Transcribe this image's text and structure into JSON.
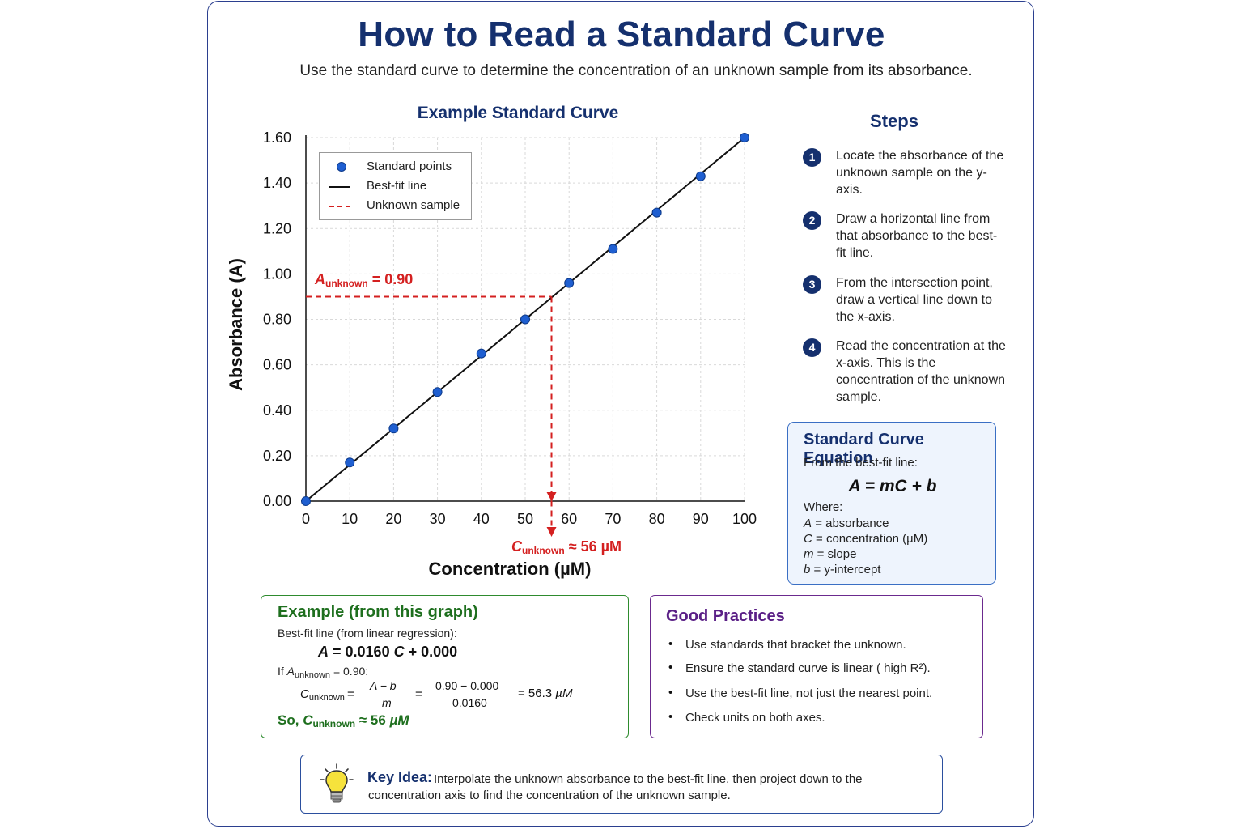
{
  "page": {
    "title": "How to Read a Standard Curve",
    "subtitle": "Use the standard curve to determine the concentration of an unknown sample from its absorbance."
  },
  "chart_data": {
    "type": "scatter",
    "title": "Example Standard Curve",
    "xlabel": "Concentration (µM)",
    "ylabel": "Absorbance (A)",
    "xlim": [
      0,
      100
    ],
    "ylim": [
      0,
      1.6
    ],
    "x_ticks": [
      "0",
      "10",
      "20",
      "30",
      "40",
      "50",
      "60",
      "70",
      "80",
      "90",
      "100"
    ],
    "y_ticks": [
      "0.00",
      "0.20",
      "0.40",
      "0.60",
      "0.80",
      "1.00",
      "1.20",
      "1.40",
      "1.60"
    ],
    "grid": true,
    "legend_position": "top-left",
    "series": [
      {
        "name": "Standard points",
        "color": "#1f5fd1",
        "x": [
          0,
          10,
          20,
          30,
          40,
          50,
          60,
          70,
          80,
          90,
          100
        ],
        "y": [
          0.0,
          0.17,
          0.32,
          0.48,
          0.65,
          0.8,
          0.96,
          1.11,
          1.27,
          1.43,
          1.6
        ]
      },
      {
        "name": "Best-fit line",
        "color": "#111111",
        "x": [
          0,
          100
        ],
        "y": [
          0.0,
          1.6
        ]
      },
      {
        "name": "Unknown sample",
        "color": "#d42020",
        "a_unknown": 0.9,
        "c_unknown": 56
      }
    ],
    "annotations": {
      "a_label_prefix": "A",
      "a_label_sub": "unknown",
      "a_label_value": "= 0.90",
      "c_label_prefix": "C",
      "c_label_sub": "unknown",
      "c_label_value": "≈ 56 µM"
    }
  },
  "steps": {
    "title": "Steps",
    "items": [
      {
        "num": "1",
        "text": "Locate the absorbance of the unknown sample on the y-axis."
      },
      {
        "num": "2",
        "text": "Draw a horizontal line from that absorbance to the best-fit line."
      },
      {
        "num": "3",
        "text": "From the intersection point, draw a vertical line down to the x-axis."
      },
      {
        "num": "4",
        "text": "Read the concentration at the x-axis. This is the concentration of the unknown sample."
      }
    ]
  },
  "equation_box": {
    "title": "Standard Curve Equation",
    "from": "From the best-fit line:",
    "equation": "A = mC + b",
    "where": "Where:",
    "defs": [
      {
        "sym": "A",
        "desc": "= absorbance"
      },
      {
        "sym": "C",
        "desc": "= concentration (µM)"
      },
      {
        "sym": "m",
        "desc": "= slope"
      },
      {
        "sym": "b",
        "desc": "= y-intercept"
      }
    ]
  },
  "example_box": {
    "title": "Example (from this graph)",
    "line1": "Best-fit line (from linear regression):",
    "eq_a": "A",
    "eq_rest": "= 0.0160",
    "eq_c": "C",
    "eq_tail": "+ 0.000",
    "if_prefix": "If",
    "if_a": "A",
    "if_sub": "unknown",
    "if_value": "= 0.90:",
    "calc_c": "C",
    "calc_sub": "unknown",
    "eq1": "=",
    "frac1_num": "A − b",
    "frac1_den": "m",
    "eq2": "=",
    "frac2_num": "0.90 − 0.000",
    "frac2_den": "0.0160",
    "result": "= 56.3",
    "result_unit": "µM",
    "so_prefix": "So,",
    "so_c": "C",
    "so_sub": "unknown",
    "so_value": "≈ 56",
    "so_unit": "µM"
  },
  "good_practices": {
    "title": "Good Practices",
    "items": [
      "Use standards that bracket the unknown.",
      "Ensure the standard curve is linear ( high R²).",
      "Use the best-fit line, not just the nearest point.",
      "Check units on both axes."
    ]
  },
  "key_idea": {
    "label": "Key Idea:",
    "line1": "Interpolate the unknown absorbance to the best-fit line, then project down to the",
    "line2": "concentration axis to find the concentration of the unknown sample."
  }
}
